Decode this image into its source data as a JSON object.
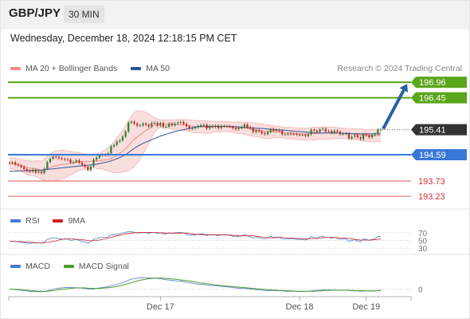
{
  "header": {
    "symbol": "GBP/JPY",
    "timeframe": "30 MIN",
    "datetime": "Wednesday, December 18, 2024 12:18:15 PM CET"
  },
  "legend": {
    "items": [
      {
        "label": "MA 20 + Bollinger Bands",
        "color": "#f28b82"
      },
      {
        "label": "MA 50",
        "color": "#2f5597"
      }
    ],
    "research": "Research © 2024 Trading Central"
  },
  "colors": {
    "green": "#5aa61a",
    "blue": "#3a78d8",
    "red": "#e57373",
    "current": "#333333",
    "bollinger_fill": "#f7d6d6",
    "candle_up": "#2e7d32",
    "candle_down": "#c62828",
    "arrow": "#2a5fa5",
    "rsi": "#4a78d4",
    "rsi_ma": "#d02020",
    "macd": "#4a78d4",
    "macd_signal": "#4a9a2a"
  },
  "chart_data": {
    "type": "candlestick",
    "ylim": [
      193.0,
      197.25
    ],
    "levels": [
      {
        "value": 196.96,
        "label": "196.96",
        "style": "green-box"
      },
      {
        "value": 196.45,
        "label": "196.45",
        "style": "green-box"
      },
      {
        "value": 195.41,
        "label": "195.41",
        "style": "dark-box"
      },
      {
        "value": 194.59,
        "label": "194.59",
        "style": "blue-box"
      },
      {
        "value": 193.73,
        "label": "193.73",
        "style": "red-text"
      },
      {
        "value": 193.23,
        "label": "193.23",
        "style": "red-text"
      }
    ],
    "x_ticks": [
      "Dec 17",
      "Dec 18",
      "Dec 19"
    ],
    "x_tick_bars": [
      52,
      100,
      123
    ],
    "bar_count": 129,
    "close": [
      194.31,
      194.34,
      194.27,
      194.24,
      194.19,
      194.12,
      194.06,
      194.04,
      194.1,
      194.01,
      194.05,
      193.99,
      194.13,
      194.35,
      194.46,
      194.53,
      194.51,
      194.48,
      194.45,
      194.43,
      194.44,
      194.33,
      194.35,
      194.41,
      194.33,
      194.26,
      194.2,
      194.09,
      194.21,
      194.43,
      194.5,
      194.57,
      194.59,
      194.58,
      194.64,
      194.86,
      194.91,
      195.02,
      195.06,
      195.18,
      195.35,
      195.64,
      195.67,
      195.61,
      195.54,
      195.55,
      195.61,
      195.57,
      195.51,
      195.63,
      195.63,
      195.54,
      195.62,
      195.5,
      195.51,
      195.61,
      195.55,
      195.61,
      195.64,
      195.66,
      195.6,
      195.52,
      195.44,
      195.46,
      195.48,
      195.53,
      195.56,
      195.57,
      195.45,
      195.53,
      195.5,
      195.54,
      195.46,
      195.53,
      195.52,
      195.52,
      195.5,
      195.46,
      195.42,
      195.47,
      195.49,
      195.58,
      195.49,
      195.45,
      195.33,
      195.39,
      195.35,
      195.29,
      195.26,
      195.33,
      195.43,
      195.37,
      195.4,
      195.37,
      195.26,
      195.26,
      195.28,
      195.27,
      195.27,
      195.25,
      195.24,
      195.24,
      195.2,
      195.26,
      195.41,
      195.38,
      195.33,
      195.42,
      195.44,
      195.35,
      195.37,
      195.3,
      195.38,
      195.34,
      195.26,
      195.28,
      195.28,
      195.12,
      195.18,
      195.23,
      195.16,
      195.1,
      195.26,
      195.23,
      195.16,
      195.24,
      195.27,
      195.41,
      195.41
    ],
    "ma20": [
      194.31,
      194.31,
      194.28,
      194.27,
      194.24,
      194.21,
      194.17,
      194.15,
      194.14,
      194.14,
      194.11,
      194.08,
      194.1,
      194.14,
      194.17,
      194.21,
      194.23,
      194.25,
      194.27,
      194.28,
      194.3,
      194.31,
      194.33,
      194.35,
      194.37,
      194.37,
      194.37,
      194.36,
      194.37,
      194.38,
      194.38,
      194.39,
      194.41,
      194.42,
      194.44,
      194.47,
      194.51,
      194.57,
      194.63,
      194.71,
      194.79,
      194.89,
      195.0,
      195.09,
      195.17,
      195.24,
      195.31,
      195.38,
      195.44,
      195.51,
      195.56,
      195.59,
      195.61,
      195.6,
      195.59,
      195.59,
      195.58,
      195.57,
      195.57,
      195.57,
      195.56,
      195.56,
      195.54,
      195.52,
      195.51,
      195.51,
      195.5,
      195.5,
      195.49,
      195.49,
      195.5,
      195.51,
      195.51,
      195.51,
      195.51,
      195.51,
      195.5,
      195.49,
      195.48,
      195.47,
      195.46,
      195.46,
      195.45,
      195.43,
      195.41,
      195.4,
      195.39,
      195.37,
      195.35,
      195.35,
      195.34,
      195.34,
      195.33,
      195.33,
      195.32,
      195.31,
      195.3,
      195.3,
      195.29,
      195.28,
      195.27,
      195.27,
      195.26,
      195.27,
      195.28,
      195.28,
      195.29,
      195.29,
      195.3,
      195.3,
      195.3,
      195.3,
      195.3,
      195.3,
      195.3,
      195.29,
      195.28,
      195.27,
      195.27,
      195.26,
      195.25,
      195.24,
      195.23,
      195.22,
      195.21,
      195.21,
      195.21,
      195.22,
      195.23
    ],
    "bb_upper": [
      194.49,
      194.49,
      194.47,
      194.46,
      194.43,
      194.42,
      194.4,
      194.39,
      194.38,
      194.39,
      194.39,
      194.38,
      194.45,
      194.56,
      194.62,
      194.68,
      194.71,
      194.73,
      194.74,
      194.73,
      194.72,
      194.7,
      194.68,
      194.67,
      194.66,
      194.64,
      194.62,
      194.6,
      194.59,
      194.6,
      194.62,
      194.65,
      194.7,
      194.75,
      194.82,
      194.91,
      195.02,
      195.14,
      195.26,
      195.39,
      195.53,
      195.7,
      195.86,
      195.97,
      196.02,
      196.03,
      196.01,
      195.98,
      195.93,
      195.86,
      195.8,
      195.75,
      195.73,
      195.73,
      195.72,
      195.73,
      195.73,
      195.73,
      195.74,
      195.74,
      195.74,
      195.74,
      195.73,
      195.72,
      195.71,
      195.71,
      195.7,
      195.7,
      195.69,
      195.69,
      195.68,
      195.68,
      195.68,
      195.68,
      195.67,
      195.67,
      195.67,
      195.66,
      195.66,
      195.66,
      195.65,
      195.66,
      195.66,
      195.65,
      195.63,
      195.62,
      195.61,
      195.6,
      195.58,
      195.57,
      195.55,
      195.54,
      195.52,
      195.51,
      195.5,
      195.49,
      195.49,
      195.49,
      195.48,
      195.47,
      195.46,
      195.46,
      195.46,
      195.46,
      195.48,
      195.49,
      195.49,
      195.49,
      195.5,
      195.5,
      195.5,
      195.5,
      195.49,
      195.48,
      195.47,
      195.46,
      195.45,
      195.45,
      195.44,
      195.44,
      195.43,
      195.43,
      195.42,
      195.41,
      195.41,
      195.41,
      195.41,
      195.42,
      195.44
    ],
    "bb_lower": [
      194.13,
      194.13,
      194.09,
      194.08,
      194.05,
      194.0,
      193.94,
      193.91,
      193.9,
      193.89,
      193.83,
      193.78,
      193.75,
      193.72,
      193.72,
      193.74,
      193.75,
      193.77,
      193.8,
      193.83,
      193.88,
      193.92,
      193.98,
      194.03,
      194.08,
      194.1,
      194.12,
      194.12,
      194.15,
      194.16,
      194.14,
      194.13,
      194.12,
      194.09,
      194.06,
      194.03,
      194.0,
      194.0,
      194.0,
      194.03,
      194.05,
      194.08,
      194.14,
      194.21,
      194.32,
      194.45,
      194.61,
      194.78,
      194.95,
      195.16,
      195.32,
      195.43,
      195.49,
      195.47,
      195.46,
      195.45,
      195.43,
      195.41,
      195.4,
      195.4,
      195.38,
      195.38,
      195.35,
      195.32,
      195.31,
      195.31,
      195.3,
      195.3,
      195.29,
      195.29,
      195.32,
      195.34,
      195.34,
      195.34,
      195.35,
      195.35,
      195.33,
      195.32,
      195.3,
      195.28,
      195.27,
      195.26,
      195.24,
      195.21,
      195.19,
      195.18,
      195.17,
      195.14,
      195.12,
      195.13,
      195.13,
      195.14,
      195.14,
      195.15,
      195.14,
      195.13,
      195.11,
      195.11,
      195.1,
      195.09,
      195.08,
      195.08,
      195.06,
      195.08,
      195.08,
      195.07,
      195.09,
      195.09,
      195.1,
      195.1,
      195.1,
      195.1,
      195.11,
      195.12,
      195.13,
      195.12,
      195.11,
      195.09,
      195.1,
      195.08,
      195.07,
      195.05,
      195.04,
      195.03,
      195.01,
      195.01,
      195.01,
      195.02,
      195.02
    ],
    "ma50": [
      194.05,
      194.05,
      194.05,
      194.06,
      194.06,
      194.06,
      194.07,
      194.07,
      194.08,
      194.08,
      194.09,
      194.09,
      194.1,
      194.11,
      194.12,
      194.13,
      194.14,
      194.15,
      194.16,
      194.17,
      194.18,
      194.19,
      194.2,
      194.21,
      194.22,
      194.23,
      194.24,
      194.25,
      194.26,
      194.27,
      194.28,
      194.3,
      194.32,
      194.34,
      194.36,
      194.39,
      194.42,
      194.46,
      194.5,
      194.54,
      194.59,
      194.66,
      194.73,
      194.8,
      194.86,
      194.91,
      194.96,
      195.0,
      195.04,
      195.08,
      195.12,
      195.16,
      195.2,
      195.23,
      195.26,
      195.29,
      195.32,
      195.35,
      195.37,
      195.39,
      195.41,
      195.43,
      195.45,
      195.47,
      195.49,
      195.51,
      195.52,
      195.52,
      195.52,
      195.52,
      195.52,
      195.52,
      195.52,
      195.52,
      195.52,
      195.52,
      195.52,
      195.51,
      195.51,
      195.5,
      195.49,
      195.49,
      195.48,
      195.47,
      195.47,
      195.46,
      195.45,
      195.45,
      195.44,
      195.43,
      195.42,
      195.42,
      195.41,
      195.4,
      195.39,
      195.39,
      195.38,
      195.37,
      195.36,
      195.35,
      195.35,
      195.34,
      195.33,
      195.32,
      195.32,
      195.31,
      195.3,
      195.3,
      195.3,
      195.3,
      195.3,
      195.3,
      195.3,
      195.3,
      195.29,
      195.29,
      195.29,
      195.29,
      195.28,
      195.28,
      195.28,
      195.27,
      195.27,
      195.27,
      195.27,
      195.27,
      195.27,
      195.27,
      195.28
    ],
    "forecast": {
      "from": 195.41,
      "to": 196.96
    },
    "rsi": {
      "ticks": [
        "70",
        "50",
        "30"
      ],
      "values": [
        47,
        48,
        47,
        46,
        45,
        44,
        43,
        42,
        44,
        43,
        44,
        43,
        46,
        52,
        55,
        57,
        56,
        55,
        54,
        53,
        54,
        50,
        51,
        53,
        50,
        48,
        46,
        43,
        47,
        53,
        55,
        57,
        58,
        58,
        59,
        64,
        65,
        66,
        67,
        69,
        71,
        73,
        73,
        71,
        69,
        70,
        71,
        70,
        68,
        71,
        71,
        68,
        70,
        67,
        67,
        70,
        68,
        70,
        70,
        71,
        69,
        66,
        63,
        64,
        64,
        66,
        67,
        67,
        62,
        65,
        64,
        65,
        62,
        65,
        64,
        64,
        63,
        61,
        59,
        61,
        62,
        66,
        62,
        60,
        56,
        58,
        57,
        55,
        54,
        57,
        61,
        58,
        59,
        58,
        54,
        54,
        55,
        54,
        54,
        53,
        53,
        53,
        51,
        54,
        60,
        58,
        56,
        60,
        61,
        57,
        58,
        55,
        58,
        56,
        53,
        54,
        54,
        48,
        50,
        52,
        49,
        47,
        54,
        53,
        50,
        53,
        54,
        60,
        60
      ],
      "ma9": [
        47,
        47,
        47,
        47,
        47,
        46,
        46,
        45,
        45,
        44,
        44,
        43,
        44,
        45,
        46,
        48,
        49,
        51,
        53,
        54,
        54,
        54,
        54,
        53,
        53,
        52,
        51,
        50,
        49,
        50,
        50,
        51,
        53,
        54,
        56,
        58,
        60,
        62,
        63,
        65,
        67,
        68,
        69,
        70,
        70,
        71,
        71,
        71,
        71,
        71,
        71,
        70,
        70,
        70,
        69,
        69,
        69,
        69,
        69,
        69,
        69,
        69,
        68,
        67,
        66,
        66,
        65,
        65,
        65,
        65,
        65,
        65,
        65,
        65,
        65,
        64,
        64,
        63,
        63,
        62,
        62,
        62,
        62,
        62,
        62,
        61,
        60,
        59,
        58,
        57,
        57,
        57,
        57,
        58,
        58,
        57,
        57,
        56,
        56,
        55,
        55,
        54,
        54,
        54,
        55,
        55,
        55,
        56,
        57,
        58,
        58,
        58,
        58,
        57,
        57,
        56,
        56,
        55,
        54,
        53,
        52,
        51,
        51,
        51,
        51,
        51,
        52,
        53,
        54
      ]
    },
    "macd": {
      "ticks": [
        "0"
      ],
      "macd": [
        0.0,
        -0.01,
        -0.02,
        -0.03,
        -0.04,
        -0.06,
        -0.07,
        -0.08,
        -0.09,
        -0.09,
        -0.1,
        -0.1,
        -0.09,
        -0.06,
        -0.03,
        0.0,
        0.02,
        0.04,
        0.05,
        0.06,
        0.07,
        0.06,
        0.06,
        0.06,
        0.05,
        0.04,
        0.03,
        0.01,
        0.0,
        0.01,
        0.03,
        0.05,
        0.07,
        0.08,
        0.1,
        0.13,
        0.16,
        0.19,
        0.22,
        0.26,
        0.3,
        0.35,
        0.39,
        0.41,
        0.43,
        0.44,
        0.45,
        0.45,
        0.44,
        0.44,
        0.44,
        0.42,
        0.41,
        0.39,
        0.37,
        0.36,
        0.34,
        0.33,
        0.32,
        0.31,
        0.29,
        0.27,
        0.25,
        0.23,
        0.21,
        0.2,
        0.19,
        0.18,
        0.16,
        0.15,
        0.14,
        0.13,
        0.12,
        0.11,
        0.1,
        0.09,
        0.08,
        0.06,
        0.05,
        0.04,
        0.03,
        0.03,
        0.02,
        0.01,
        -0.01,
        -0.02,
        -0.03,
        -0.04,
        -0.05,
        -0.06,
        -0.06,
        -0.06,
        -0.06,
        -0.06,
        -0.07,
        -0.08,
        -0.08,
        -0.08,
        -0.08,
        -0.09,
        -0.09,
        -0.09,
        -0.09,
        -0.08,
        -0.07,
        -0.06,
        -0.05,
        -0.04,
        -0.03,
        -0.03,
        -0.03,
        -0.03,
        -0.03,
        -0.04,
        -0.04,
        -0.04,
        -0.04,
        -0.05,
        -0.06,
        -0.07,
        -0.07,
        -0.08,
        -0.07,
        -0.07,
        -0.07,
        -0.07,
        -0.07,
        -0.05,
        -0.04
      ],
      "signal": [
        0.0,
        0.0,
        -0.01,
        -0.01,
        -0.02,
        -0.03,
        -0.04,
        -0.05,
        -0.06,
        -0.07,
        -0.08,
        -0.08,
        -0.09,
        -0.08,
        -0.07,
        -0.06,
        -0.04,
        -0.02,
        -0.01,
        0.0,
        0.02,
        0.03,
        0.04,
        0.05,
        0.05,
        0.05,
        0.05,
        0.04,
        0.03,
        0.03,
        0.03,
        0.03,
        0.04,
        0.05,
        0.06,
        0.07,
        0.09,
        0.11,
        0.13,
        0.16,
        0.19,
        0.22,
        0.26,
        0.29,
        0.32,
        0.35,
        0.37,
        0.39,
        0.41,
        0.42,
        0.43,
        0.43,
        0.43,
        0.43,
        0.42,
        0.41,
        0.4,
        0.39,
        0.38,
        0.36,
        0.35,
        0.33,
        0.32,
        0.3,
        0.28,
        0.26,
        0.24,
        0.23,
        0.21,
        0.2,
        0.18,
        0.17,
        0.16,
        0.14,
        0.13,
        0.12,
        0.11,
        0.1,
        0.09,
        0.08,
        0.07,
        0.06,
        0.05,
        0.04,
        0.03,
        0.02,
        0.01,
        0.0,
        -0.01,
        -0.02,
        -0.03,
        -0.04,
        -0.04,
        -0.05,
        -0.05,
        -0.06,
        -0.06,
        -0.07,
        -0.07,
        -0.08,
        -0.08,
        -0.08,
        -0.08,
        -0.08,
        -0.08,
        -0.08,
        -0.07,
        -0.07,
        -0.06,
        -0.05,
        -0.05,
        -0.04,
        -0.04,
        -0.04,
        -0.04,
        -0.04,
        -0.04,
        -0.04,
        -0.05,
        -0.05,
        -0.06,
        -0.06,
        -0.06,
        -0.07,
        -0.07,
        -0.07,
        -0.07,
        -0.06,
        -0.06
      ]
    },
    "indicator_legends": {
      "rsi": [
        {
          "label": "RSI",
          "color": "#4a78d4"
        },
        {
          "label": "9MA",
          "color": "#d02020"
        }
      ],
      "macd": [
        {
          "label": "MACD",
          "color": "#4a78d4"
        },
        {
          "label": "MACD Signal",
          "color": "#4a9a2a"
        }
      ]
    }
  }
}
